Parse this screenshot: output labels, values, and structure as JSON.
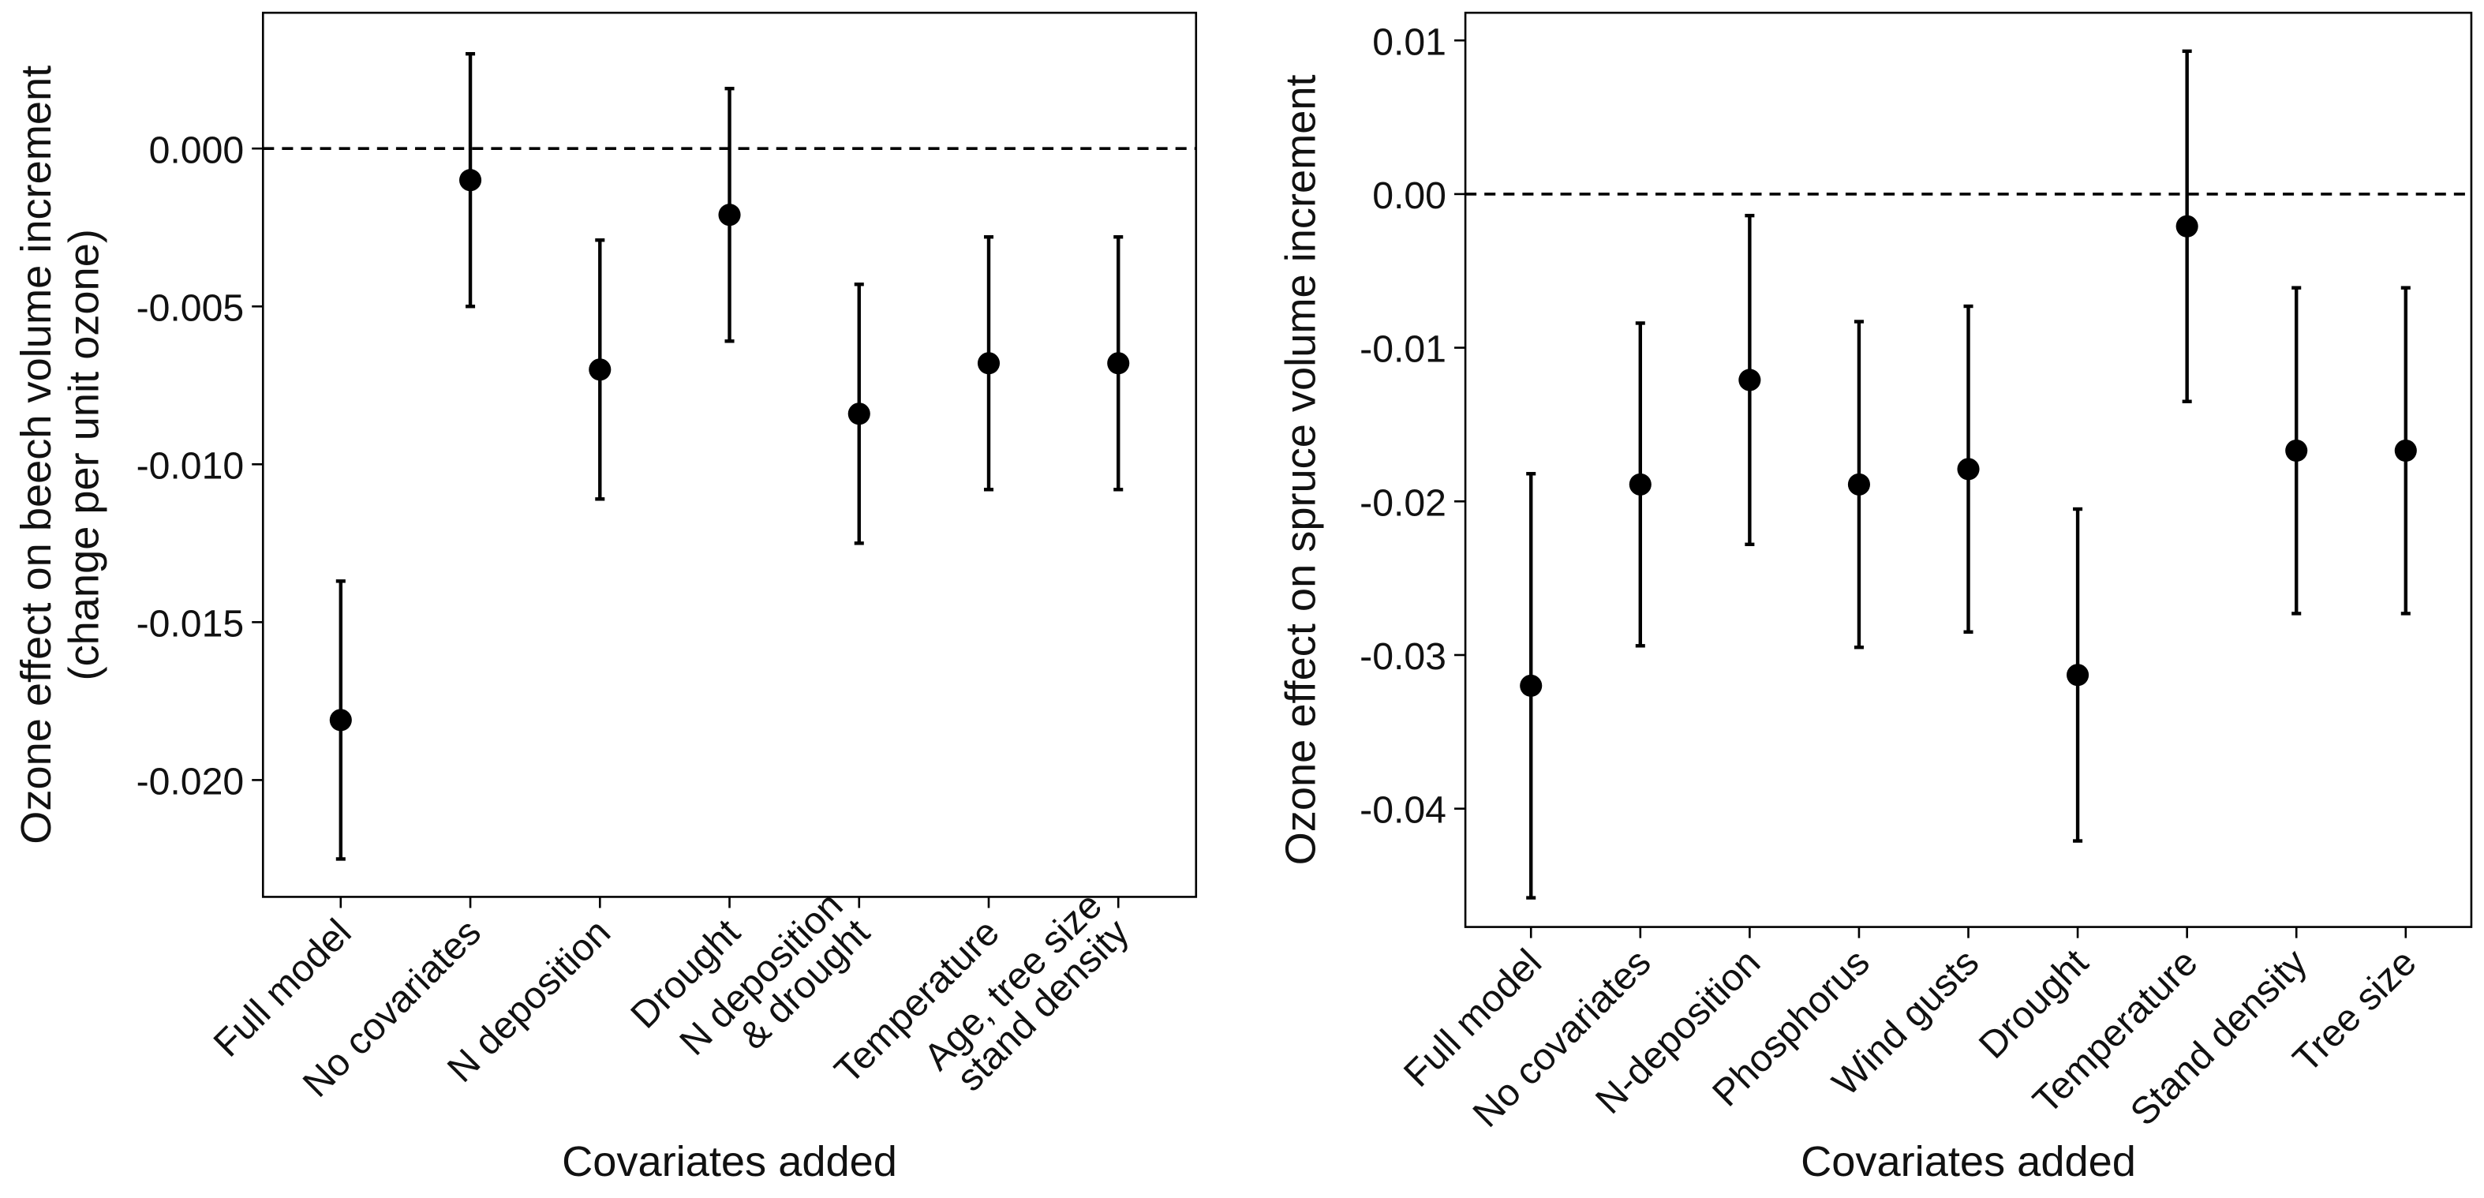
{
  "chart_data": [
    {
      "type": "errorbar",
      "ylabel": [
        "Ozone effect on beech volume increment",
        "(change per unit ozone)"
      ],
      "xlabel": "Covariates added",
      "categories": [
        "Full model",
        "No covariates",
        "N deposition",
        "Drought",
        "N deposition\n& drought",
        "Temperature",
        "Age, tree size\nstand density"
      ],
      "values": [
        -0.0181,
        -0.001,
        -0.007,
        -0.0021,
        -0.0084,
        -0.0068,
        -0.0068
      ],
      "errors": [
        0.0044,
        0.004,
        0.0041,
        0.004,
        0.0041,
        0.004,
        0.004
      ],
      "color": "#000000",
      "reference_line": 0,
      "ylim": [
        -0.0237,
        0.0043
      ],
      "yticks": [
        {
          "value": 0,
          "label": "0.000"
        },
        {
          "value": -0.005,
          "label": "-0.005"
        },
        {
          "value": -0.01,
          "label": "-0.010"
        },
        {
          "value": -0.015,
          "label": "-0.015"
        },
        {
          "value": -0.02,
          "label": "-0.020"
        }
      ]
    },
    {
      "type": "errorbar",
      "ylabel": [
        "Ozone effect on spruce volume increment"
      ],
      "xlabel": "Covariates added",
      "categories": [
        "Full model",
        "No covariates",
        "N-deposition",
        "Phosphorus",
        "Wind gusts",
        "Drought",
        "Temperature",
        "Stand density",
        "Tree size"
      ],
      "values": [
        -0.032,
        -0.0189,
        -0.0121,
        -0.0189,
        -0.0179,
        -0.0313,
        -0.0021,
        -0.0167,
        -0.0167
      ],
      "errors": [
        0.0138,
        0.0105,
        0.0107,
        0.0106,
        0.0106,
        0.0108,
        0.0114,
        0.0106,
        0.0106
      ],
      "color": "#000000",
      "reference_line": 0,
      "ylim": [
        -0.0477,
        0.0118
      ],
      "yticks": [
        {
          "value": 0.01,
          "label": "0.01"
        },
        {
          "value": 0,
          "label": "0.00"
        },
        {
          "value": -0.01,
          "label": "-0.01"
        },
        {
          "value": -0.02,
          "label": "-0.02"
        },
        {
          "value": -0.03,
          "label": "-0.03"
        },
        {
          "value": -0.04,
          "label": "-0.04"
        }
      ]
    }
  ]
}
